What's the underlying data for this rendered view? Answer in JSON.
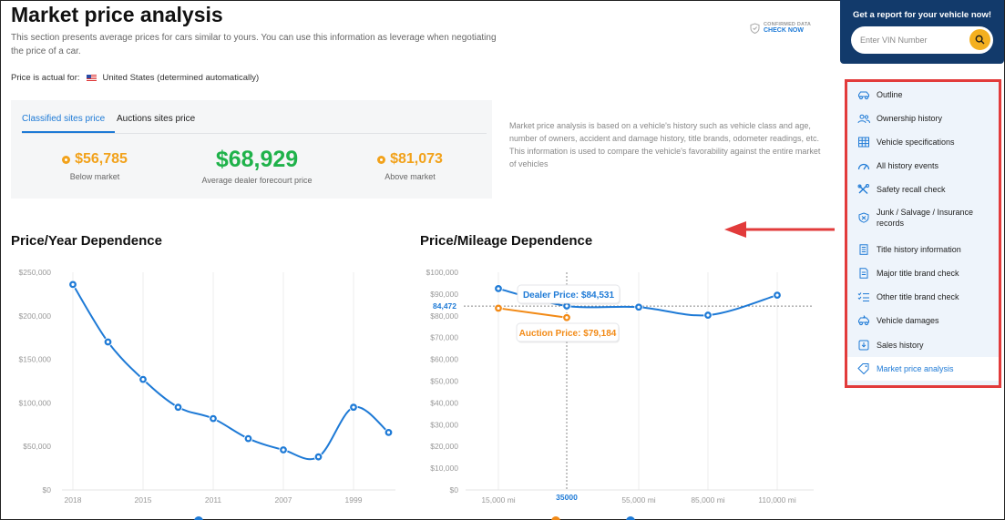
{
  "page": {
    "title": "Market price analysis",
    "description": "This section presents average prices for cars similar to yours. You can use this information as leverage when negotiating the price of a car.",
    "confirmed_line1": "CONFIRMED DATA",
    "confirmed_line2": "CHECK NOW",
    "actual_label": "Price is actual for:",
    "actual_country": "United States (determined automatically)"
  },
  "price_tabs": [
    {
      "label": "Classified sites price",
      "active": true
    },
    {
      "label": "Auctions sites price",
      "active": false
    }
  ],
  "prices": {
    "below": {
      "value": "$56,785",
      "label": "Below market"
    },
    "average": {
      "value": "$68,929",
      "label": "Average dealer forecourt price"
    },
    "above": {
      "value": "$81,073",
      "label": "Above market"
    }
  },
  "info_text": "Market price analysis is based on a vehicle's history such as vehicle class and age, number of owners, accident and damage history, title brands, odometer readings, etc. This information is used to compare the vehicle's favorability against the entire market of vehicles",
  "vin_card": {
    "title": "Get a report for your vehicle now!",
    "placeholder": "Enter VIN Number"
  },
  "sidebar": {
    "items": [
      {
        "label": "Outline",
        "icon": "car-icon"
      },
      {
        "label": "Ownership history",
        "icon": "users-icon"
      },
      {
        "label": "Vehicle specifications",
        "icon": "grid-icon"
      },
      {
        "label": "All history events",
        "icon": "gauge-icon"
      },
      {
        "label": "Safety recall check",
        "icon": "tools-icon"
      },
      {
        "label": "Junk / Salvage / Insurance records",
        "icon": "shield-icon"
      },
      {
        "label": "Title history information",
        "icon": "document-icon"
      },
      {
        "label": "Major title brand check",
        "icon": "document-icon"
      },
      {
        "label": "Other title brand check",
        "icon": "checklist-icon"
      },
      {
        "label": "Vehicle damages",
        "icon": "damaged-car-icon"
      },
      {
        "label": "Sales history",
        "icon": "download-icon"
      },
      {
        "label": "Market price analysis",
        "icon": "tag-icon",
        "active": true
      }
    ]
  },
  "colors": {
    "accent": "#1e7ad6",
    "orange": "#f2a21b",
    "green": "#1fb24a",
    "navy": "#123a6b",
    "highlight": "#e23b3b"
  },
  "chart_data": [
    {
      "type": "line",
      "title": "Price/Year Dependence",
      "x_tick_labels": [
        "2018",
        "2015",
        "2011",
        "2007",
        "1999"
      ],
      "x": [
        2018,
        2017,
        2015,
        2013,
        2011,
        2009,
        2007,
        2005,
        1999,
        1997
      ],
      "series": [
        {
          "name": "",
          "values": [
            236000,
            170000,
            127000,
            95000,
            82000,
            59000,
            46000,
            38000,
            95000,
            66000
          ]
        }
      ],
      "ylim": [
        0,
        250000
      ],
      "y_tick_labels": [
        "$0",
        "$50,000",
        "$100,000",
        "$150,000",
        "$200,000",
        "$250,000"
      ],
      "grid": "vertical"
    },
    {
      "type": "line",
      "title": "Price/Mileage Dependence",
      "x_tick_labels": [
        "15,000 mi",
        "35000",
        "55,000 mi",
        "85,000 mi",
        "110,000 mi"
      ],
      "series": [
        {
          "name": "Dealer",
          "points": [
            [
              15000,
              92500
            ],
            [
              35000,
              84531
            ],
            [
              55000,
              84000
            ],
            [
              85000,
              80300
            ],
            [
              110000,
              89500
            ]
          ]
        },
        {
          "name": "Auction",
          "points": [
            [
              15000,
              83500
            ],
            [
              35000,
              79184
            ]
          ]
        }
      ],
      "ylim": [
        0,
        100000
      ],
      "y_tick_labels": [
        "$0",
        "$10,000",
        "$20,000",
        "$30,000",
        "$40,000",
        "$50,000",
        "$60,000",
        "$70,000",
        "$80,000",
        "$90,000",
        "$100,000"
      ],
      "crosshair": {
        "x": 35000,
        "y_label": "84,472"
      },
      "tooltips": {
        "dealer": "Dealer Price: $84,531",
        "auction": "Auction Price: $79,184"
      },
      "grid": "vertical"
    }
  ]
}
